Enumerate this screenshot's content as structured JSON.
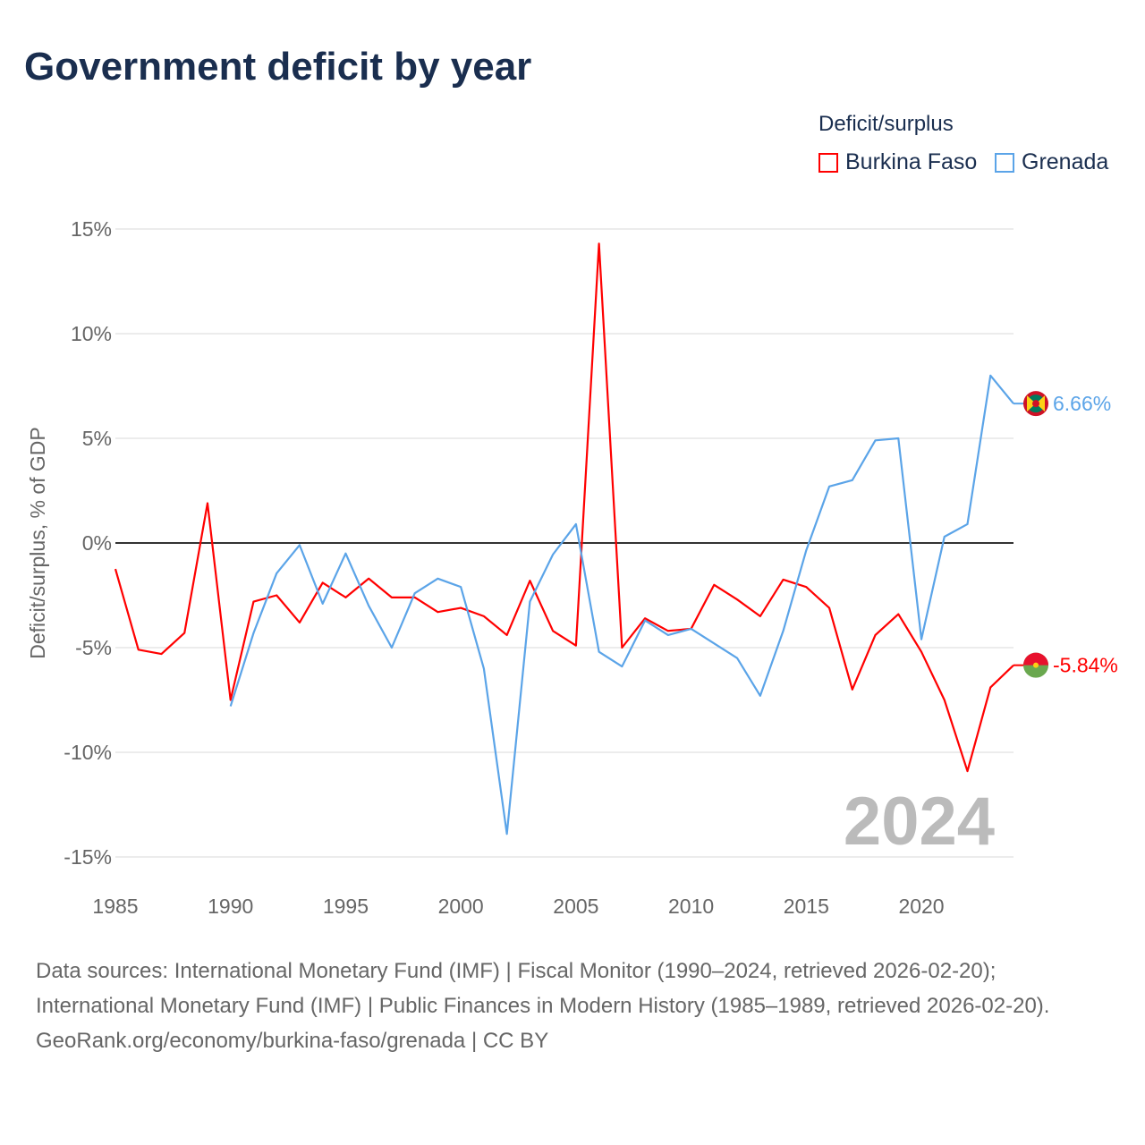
{
  "chart_data": {
    "type": "line",
    "title": "Government deficit by year",
    "ylabel": "Deficit/surplus, % of GDP",
    "xlabel": "",
    "legend_title": "Deficit/surplus",
    "legend_position": "top-right",
    "ylim": [
      -15,
      15
    ],
    "xlim": [
      1985,
      2024
    ],
    "yticks": [
      15,
      10,
      5,
      0,
      -5,
      -10,
      -15
    ],
    "ytick_labels": [
      "15%",
      "10%",
      "5%",
      "0%",
      "-5%",
      "-10%",
      "-15%"
    ],
    "xticks": [
      1985,
      1990,
      1995,
      2000,
      2005,
      2010,
      2015,
      2020
    ],
    "xtick_labels": [
      "1985",
      "1990",
      "1995",
      "2000",
      "2005",
      "2010",
      "2015",
      "2020"
    ],
    "year_watermark": "2024",
    "series": [
      {
        "name": "Burkina Faso",
        "color": "#ff0000",
        "end_label": "-5.84%",
        "x": [
          1985,
          1986,
          1987,
          1988,
          1989,
          1990,
          1991,
          1992,
          1993,
          1994,
          1995,
          1996,
          1997,
          1998,
          1999,
          2000,
          2001,
          2002,
          2003,
          2004,
          2005,
          2006,
          2007,
          2008,
          2009,
          2010,
          2011,
          2012,
          2013,
          2014,
          2015,
          2016,
          2017,
          2018,
          2019,
          2020,
          2021,
          2022,
          2023,
          2024
        ],
        "values": [
          -1.24,
          -5.1,
          -5.3,
          -4.3,
          1.9,
          -7.5,
          -2.8,
          -2.5,
          -3.8,
          -1.9,
          -2.6,
          -1.7,
          -2.6,
          -2.6,
          -3.3,
          -3.1,
          -3.5,
          -4.4,
          -1.8,
          -4.2,
          -4.9,
          14.3,
          -5.0,
          -3.6,
          -4.2,
          -4.1,
          -2.0,
          -2.7,
          -3.5,
          -1.75,
          -2.1,
          -3.1,
          -7.0,
          -4.4,
          -3.4,
          -5.2,
          -7.5,
          -10.9,
          -6.9,
          -5.84
        ]
      },
      {
        "name": "Grenada",
        "color": "#5ba4e8",
        "end_label": "6.66%",
        "x": [
          1990,
          1991,
          1992,
          1993,
          1994,
          1995,
          1996,
          1997,
          1998,
          1999,
          2000,
          2001,
          2002,
          2003,
          2004,
          2005,
          2006,
          2007,
          2008,
          2009,
          2010,
          2011,
          2012,
          2013,
          2014,
          2015,
          2016,
          2017,
          2018,
          2019,
          2020,
          2021,
          2022,
          2023,
          2024
        ],
        "values": [
          -7.8,
          -4.3,
          -1.45,
          -0.1,
          -2.9,
          -0.5,
          -3.0,
          -5.0,
          -2.4,
          -1.7,
          -2.1,
          -6.0,
          -13.9,
          -2.8,
          -0.55,
          0.9,
          -5.2,
          -5.9,
          -3.7,
          -4.4,
          -4.1,
          -4.8,
          -5.5,
          -7.3,
          -4.2,
          -0.35,
          2.7,
          3.0,
          4.9,
          5.0,
          -4.6,
          0.3,
          0.9,
          8.0,
          6.66
        ]
      }
    ]
  },
  "footer": {
    "sources": "Data sources: International Monetary Fund (IMF) | Fiscal Monitor (1990–2024, retrieved 2026-02-20); International Monetary Fund (IMF) | Public Finances in Modern History (1985–1989, retrieved 2026-02-20).",
    "link": "GeoRank.org/economy/burkina-faso/grenada | CC BY"
  }
}
